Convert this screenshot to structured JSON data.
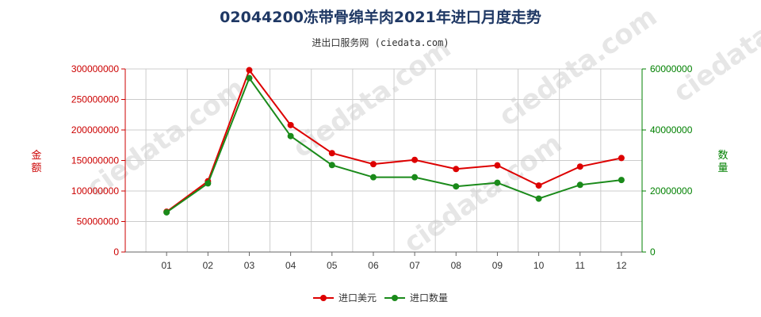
{
  "chart_data": {
    "type": "line",
    "title": "02044200冻带骨绵羊肉2021年进口月度走势",
    "subtitle": "进出口服务网 (ciedata.com)",
    "categories": [
      "01",
      "02",
      "03",
      "04",
      "05",
      "06",
      "07",
      "08",
      "09",
      "10",
      "11",
      "12"
    ],
    "ylabel_left": "金额",
    "ylabel_right": "数量",
    "ylim_left": [
      0,
      300000000
    ],
    "ylim_right": [
      0,
      60000000
    ],
    "yticks_left": [
      "0",
      "50000000",
      "100000000",
      "150000000",
      "200000000",
      "250000000",
      "300000000"
    ],
    "yticks_right": [
      "0",
      "20000000",
      "40000000",
      "60000000"
    ],
    "grid": true,
    "legend_position": "bottom-center",
    "series": [
      {
        "name": "进口美元",
        "axis": "left",
        "color": "#dd0000",
        "values": [
          66000000,
          116000000,
          298000000,
          208000000,
          162000000,
          144000000,
          151000000,
          136000000,
          142000000,
          109000000,
          140000000,
          154000000
        ]
      },
      {
        "name": "进口数量",
        "axis": "right",
        "color": "#1a8a1a",
        "values": [
          13000000,
          22500000,
          57000000,
          38000000,
          28500000,
          24500000,
          24500000,
          21500000,
          22700000,
          17500000,
          22000000,
          23600000
        ]
      }
    ]
  }
}
